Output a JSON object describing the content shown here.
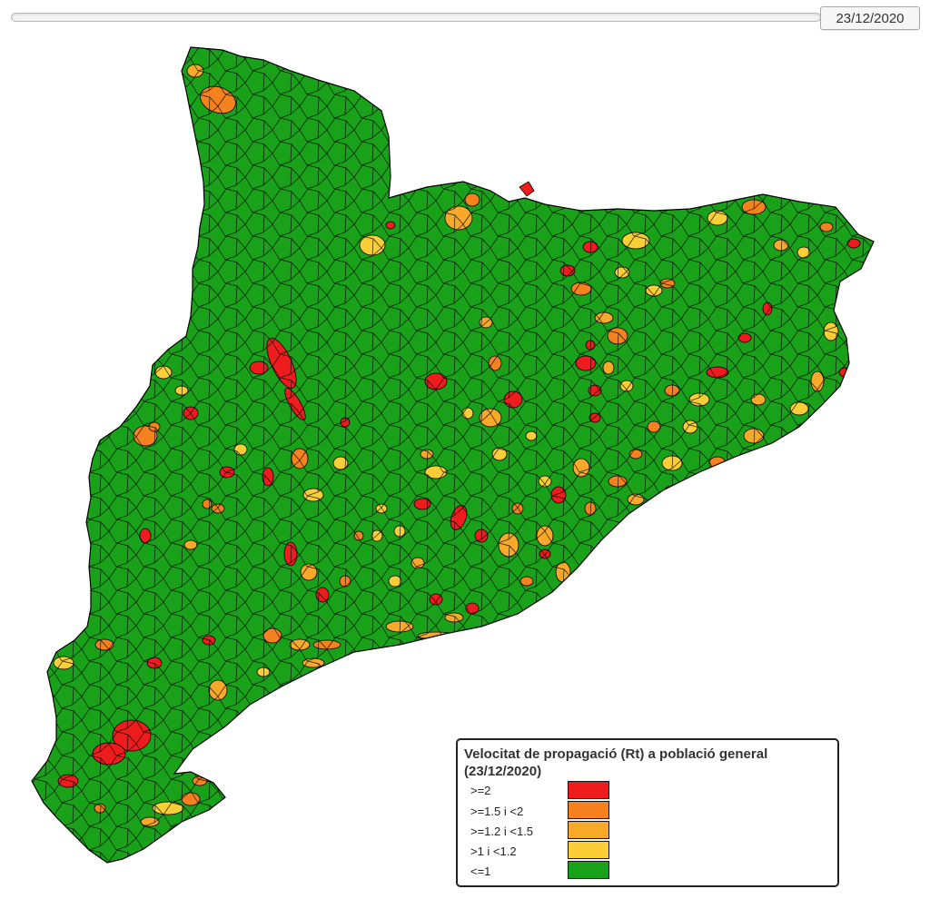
{
  "slider": {
    "date": "23/12/2020"
  },
  "legend": {
    "title": "Velocitat de propagació (Rt) a població general",
    "subtitle": "(23/12/2020)",
    "items": [
      {
        "label": ">=2",
        "color": "#ee1c1c"
      },
      {
        "label": ">=1.5 i <2",
        "color": "#f5821f"
      },
      {
        "label": ">=1.2 i <1.5",
        "color": "#f8a92a"
      },
      {
        "label": ">1 i <1.2",
        "color": "#fbcd37"
      },
      {
        "label": "<=1",
        "color": "#1aa11a"
      }
    ]
  }
}
